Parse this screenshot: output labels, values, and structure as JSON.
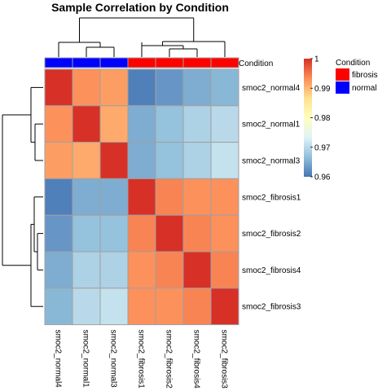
{
  "chart_data": {
    "type": "heatmap",
    "title": "Sample Correlation by Condition",
    "rows": [
      "smoc2_normal4",
      "smoc2_normal1",
      "smoc2_normal3",
      "smoc2_fibrosis1",
      "smoc2_fibrosis2",
      "smoc2_fibrosis4",
      "smoc2_fibrosis3"
    ],
    "columns": [
      "smoc2_normal4",
      "smoc2_normal1",
      "smoc2_normal3",
      "smoc2_fibrosis1",
      "smoc2_fibrosis2",
      "smoc2_fibrosis4",
      "smoc2_fibrosis3"
    ],
    "values": [
      [
        1.0,
        0.993,
        0.992,
        0.961,
        0.963,
        0.965,
        0.966
      ],
      [
        0.993,
        1.0,
        0.991,
        0.965,
        0.967,
        0.969,
        0.97
      ],
      [
        0.992,
        0.991,
        1.0,
        0.965,
        0.967,
        0.969,
        0.971
      ],
      [
        0.961,
        0.965,
        0.965,
        1.0,
        0.994,
        0.993,
        0.993
      ],
      [
        0.963,
        0.967,
        0.967,
        0.994,
        1.0,
        0.994,
        0.993
      ],
      [
        0.965,
        0.969,
        0.969,
        0.993,
        0.994,
        1.0,
        0.994
      ],
      [
        0.966,
        0.97,
        0.971,
        0.993,
        0.993,
        0.994,
        1.0
      ]
    ],
    "color_scale": {
      "min": 0.96,
      "max": 1.0,
      "ticks": [
        0.96,
        0.97,
        0.98,
        0.99,
        1
      ],
      "tick_labels": [
        "0.96",
        "0.97",
        "0.98",
        "0.99",
        "1"
      ],
      "colors": [
        "#4575b4",
        "#91bfdb",
        "#e0f3f8",
        "#ffffbf",
        "#fee090",
        "#fc8d59",
        "#d73027"
      ]
    },
    "annotation": {
      "label": "Condition",
      "values": [
        "normal",
        "normal",
        "normal",
        "fibrosis",
        "fibrosis",
        "fibrosis",
        "fibrosis"
      ]
    },
    "legend": {
      "title": "Condition",
      "items": [
        {
          "label": "fibrosis",
          "color": "#ff0000"
        },
        {
          "label": "normal",
          "color": "#0000ff"
        }
      ]
    },
    "dendrogram": "row and column clustering"
  }
}
